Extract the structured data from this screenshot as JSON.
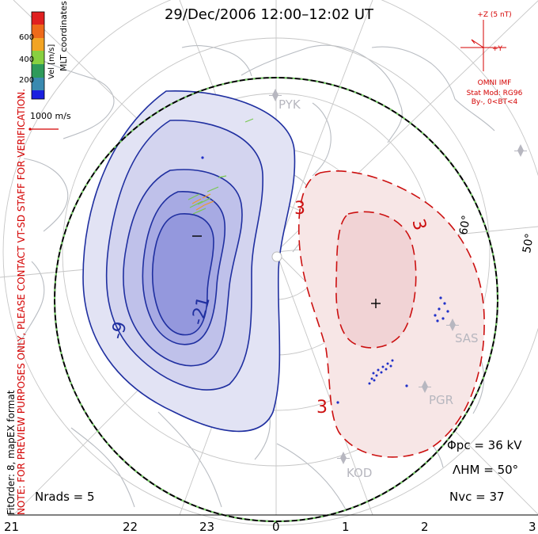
{
  "header": {
    "title": "29/Dec/2006 12:00–12:02 UT"
  },
  "notes": {
    "fit_order": "FitOrder: 8, mapEX format",
    "preview": "NOTE: FOR PREVIEW PURPOSES ONLY, PLEASE CONTACT VT-SD STAFF FOR VERIFICATION."
  },
  "colorbar": {
    "labels": [
      "600",
      "400",
      "200"
    ],
    "title": "Vel [m/s]",
    "coords": "MLT coordinates",
    "ref_vector": "1000 m/s",
    "colors": [
      "#e02020",
      "#ee6a1a",
      "#f2a424",
      "#88d040",
      "#2e9a5a",
      "#3a8ab0",
      "#1a20e0"
    ]
  },
  "imf": {
    "scale": "+Z (5 nT)",
    "y_label": "+Y",
    "source": "OMNI IMF",
    "model": "Stat Mod: RG96",
    "conditions": "By-, 0<BT<4"
  },
  "stations": [
    "PYK",
    "SAS",
    "PGR",
    "KOD"
  ],
  "map": {
    "contour_labels": {
      "neg1": "-9",
      "neg2": "-21",
      "pos1": "3",
      "pos2": "3",
      "pos3": "3"
    },
    "lat_labels": [
      "60°",
      "50°"
    ],
    "colors": {
      "negative": "#1f2fa0",
      "positive": "#cc1010",
      "boundary": "#000000"
    }
  },
  "stats": {
    "phi_pc": "Φpc = 36 kV",
    "lambda_hm": "ΛHM = 50°",
    "n_vc": "Nvc = 37",
    "n_rads": "Nrads = 5"
  },
  "axis": {
    "mlt": [
      "21",
      "22",
      "23",
      "0",
      "1",
      "2",
      "3"
    ]
  }
}
